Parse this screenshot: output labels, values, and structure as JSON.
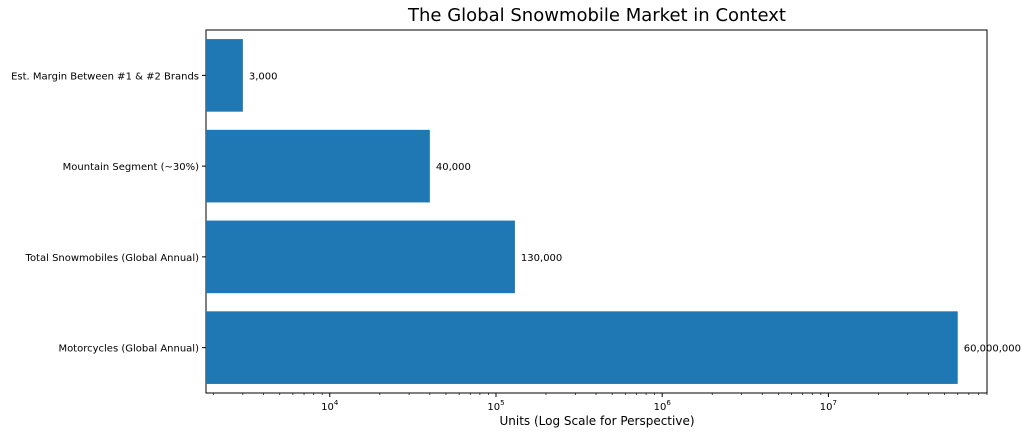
{
  "chart_data": {
    "type": "bar",
    "orientation": "horizontal",
    "title": "The Global Snowmobile Market in Context",
    "xlabel": "Units (Log Scale for Perspective)",
    "ylabel": "",
    "xscale": "log",
    "xlim": [
      1800,
      90000000
    ],
    "x_tick_values": [
      10000,
      100000,
      1000000,
      10000000
    ],
    "x_tick_labels": [
      {
        "base": "10",
        "exp": "4"
      },
      {
        "base": "10",
        "exp": "5"
      },
      {
        "base": "10",
        "exp": "6"
      },
      {
        "base": "10",
        "exp": "7"
      }
    ],
    "categories": [
      "Est. Margin Between #1 & #2 Brands",
      "Mountain Segment (~30%)",
      "Total Snowmobiles (Global Annual)",
      "Motorcycles (Global Annual)"
    ],
    "values": [
      3000,
      40000,
      130000,
      60000000
    ],
    "value_labels": [
      "3,000",
      "40,000",
      "130,000",
      "60,000,000"
    ],
    "bar_color": "#1f77b4",
    "grid": false,
    "legend": "none"
  }
}
